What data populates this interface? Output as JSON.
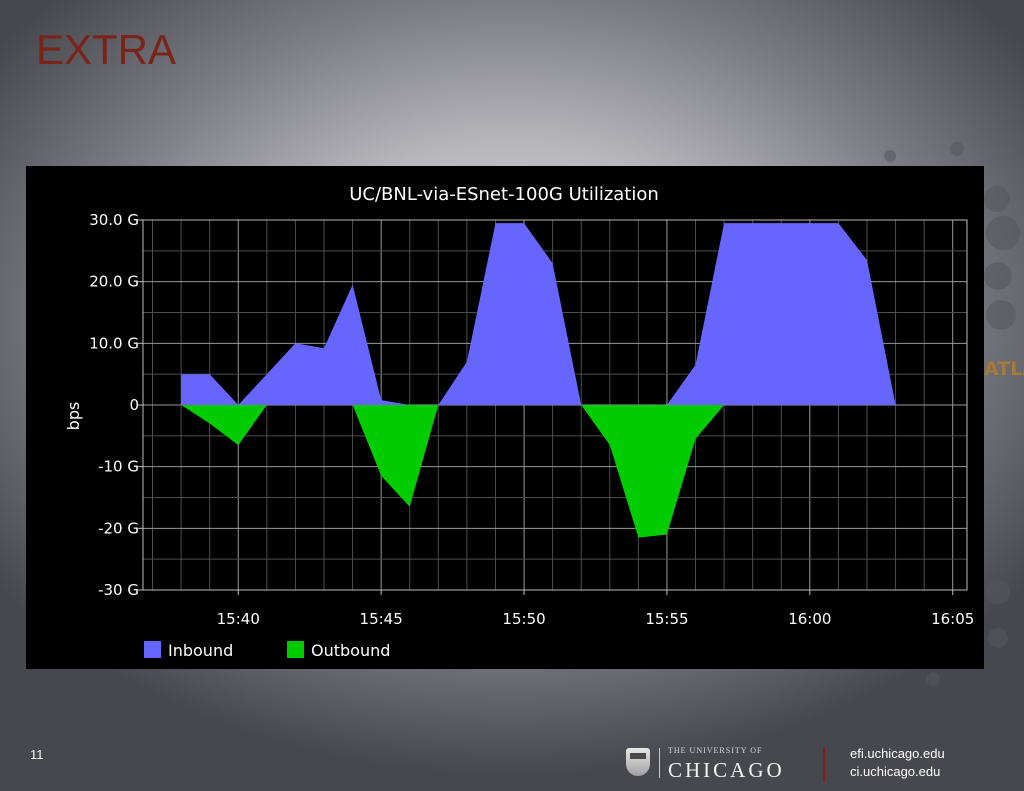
{
  "slide": {
    "title": "EXTRA",
    "page_number": "11",
    "logo_text_small": "THE UNIVERSITY OF",
    "logo_text_large": "CHICAGO",
    "logo_side_text": "ATLAS",
    "links": [
      "efi.uchicago.edu",
      "ci.uchicago.edu"
    ]
  },
  "chart_data": {
    "type": "area",
    "title": "UC/BNL-via-ESnet-100G Utilization",
    "xlabel": "",
    "ylabel": "bps",
    "x_unit": "time (HH:MM)",
    "xlim": [
      "15:36:40",
      "16:05:30"
    ],
    "ylim": [
      -30,
      30
    ],
    "y_unit": "G",
    "y_ticks": [
      30,
      20,
      10,
      0,
      -10,
      -20,
      -30
    ],
    "y_tick_labels": [
      "30.0 G",
      "20.0 G",
      "10.0 G",
      "0",
      "-10 G",
      "-20 G",
      "-30 G"
    ],
    "x_ticks": [
      "15:40",
      "15:45",
      "15:50",
      "15:55",
      "16:00",
      "16:05"
    ],
    "grid": true,
    "legend": "bottom-left",
    "series": [
      {
        "name": "Inbound",
        "color": "#6666ff",
        "points": [
          [
            "15:38",
            0
          ],
          [
            "15:38",
            5
          ],
          [
            "15:39",
            5
          ],
          [
            "15:40",
            0
          ],
          [
            "15:41",
            5
          ],
          [
            "15:42",
            10
          ],
          [
            "15:43",
            9.2
          ],
          [
            "15:44",
            19.5
          ],
          [
            "15:45",
            0.8
          ],
          [
            "15:46",
            0
          ],
          [
            "15:47",
            0
          ],
          [
            "15:48",
            7
          ],
          [
            "15:49",
            29.5
          ],
          [
            "15:50",
            29.5
          ],
          [
            "15:51",
            23
          ],
          [
            "15:52",
            0
          ],
          [
            "15:55",
            0
          ],
          [
            "15:56",
            6.5
          ],
          [
            "15:57",
            29.5
          ],
          [
            "16:01",
            29.5
          ],
          [
            "16:02",
            23.5
          ],
          [
            "16:03",
            0
          ]
        ]
      },
      {
        "name": "Outbound",
        "color": "#00cc00",
        "points": [
          [
            "15:38",
            0
          ],
          [
            "15:39",
            -3
          ],
          [
            "15:40",
            -6.5
          ],
          [
            "15:41",
            0
          ],
          [
            "15:44",
            0
          ],
          [
            "15:45",
            -11.5
          ],
          [
            "15:46",
            -16.5
          ],
          [
            "15:47",
            0
          ],
          [
            "15:52",
            0
          ],
          [
            "15:53",
            -6.5
          ],
          [
            "15:54",
            -21.5
          ],
          [
            "15:55",
            -21
          ],
          [
            "15:56",
            -5.5
          ],
          [
            "15:57",
            0
          ]
        ]
      }
    ]
  }
}
